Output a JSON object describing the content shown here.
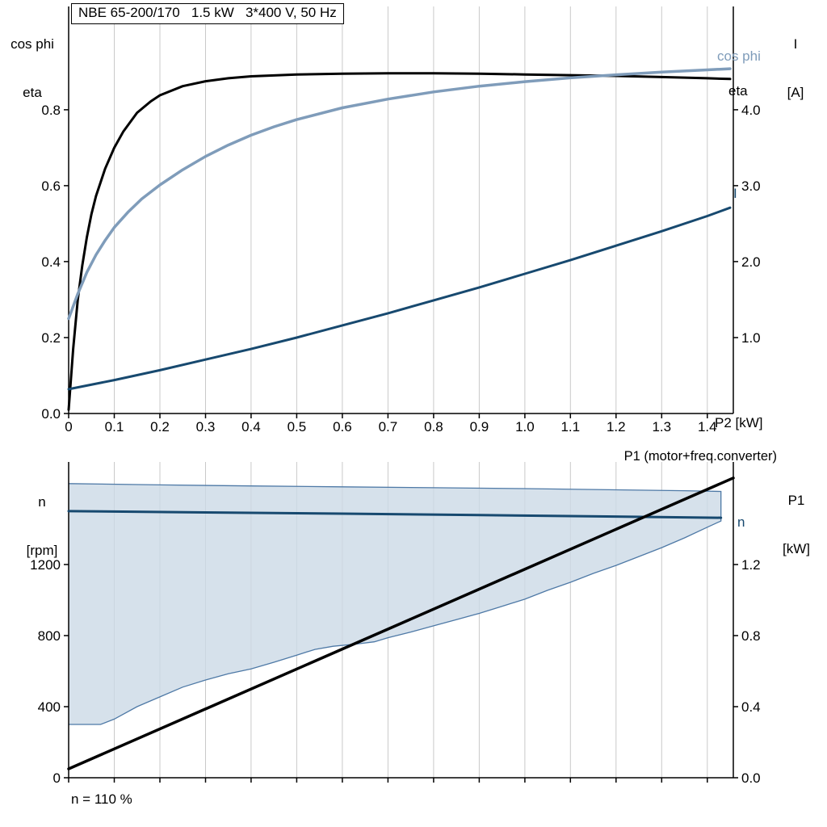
{
  "title_box": {
    "text": "NBE 65-200/170   1.5 kW   3*400 V, 50 Hz"
  },
  "colors": {
    "eta_curve": "#000000",
    "cos_phi_curve": "#7f9cba",
    "current_curve": "#17496f",
    "speed_curve": "#17496f",
    "p1_curve": "#000000",
    "envelope_fill": "#ccd9e6",
    "envelope_edge": "#4e79a6",
    "grid": "#c9c9c9",
    "axis": "#000000",
    "text": "#000000"
  },
  "top_chart": {
    "left_axis_title": [
      "cos phi",
      "eta"
    ],
    "right_axis_title": [
      "I",
      "[A]"
    ],
    "x_axis_label": "P2 [kW]",
    "series_labels": {
      "cos_phi": "cos phi",
      "eta": "eta",
      "current": "I"
    }
  },
  "bottom_chart": {
    "left_axis_title": [
      "n",
      "[rpm]"
    ],
    "right_axis_title": [
      "P1",
      "[kW]"
    ],
    "p1_series_label": "P1 (motor+freq.converter)",
    "n_series_label": "n",
    "annotation": "n = 110 %"
  },
  "chart_data": [
    {
      "id": "top",
      "type": "line",
      "title": "NBE 65-200/170 1.5 kW 3*400 V, 50 Hz",
      "xlabel": "P2 [kW]",
      "xlim": [
        0,
        1.457
      ],
      "x_ticks": [
        {
          "v": 0,
          "label": "0"
        },
        {
          "v": 0.1,
          "label": "0.1"
        },
        {
          "v": 0.2,
          "label": "0.2"
        },
        {
          "v": 0.3,
          "label": "0.3"
        },
        {
          "v": 0.4,
          "label": "0.4"
        },
        {
          "v": 0.5,
          "label": "0.5"
        },
        {
          "v": 0.6,
          "label": "0.6"
        },
        {
          "v": 0.7,
          "label": "0.7"
        },
        {
          "v": 0.8,
          "label": "0.8"
        },
        {
          "v": 0.9,
          "label": "0.9"
        },
        {
          "v": 1.0,
          "label": "1.0"
        },
        {
          "v": 1.1,
          "label": "1.1"
        },
        {
          "v": 1.2,
          "label": "1.2"
        },
        {
          "v": 1.3,
          "label": "1.3"
        },
        {
          "v": 1.4,
          "label": "1.4"
        }
      ],
      "left_axis": {
        "label": "cos phi / eta",
        "lim": [
          0,
          1.072
        ],
        "ticks": [
          {
            "v": 0,
            "label": "0.0"
          },
          {
            "v": 0.2,
            "label": "0.2"
          },
          {
            "v": 0.4,
            "label": "0.4"
          },
          {
            "v": 0.6,
            "label": "0.6"
          },
          {
            "v": 0.8,
            "label": "0.8"
          }
        ]
      },
      "right_axis": {
        "label": "I [A]",
        "lim": [
          0,
          5.36
        ],
        "ticks": [
          {
            "v": 1,
            "label": "1.0"
          },
          {
            "v": 2,
            "label": "2.0"
          },
          {
            "v": 3,
            "label": "3.0"
          },
          {
            "v": 4,
            "label": "4.0"
          }
        ]
      },
      "series": [
        {
          "name": "eta",
          "axis": "left",
          "color_key": "eta_curve",
          "width": 3,
          "points": [
            [
              0,
              0.01
            ],
            [
              0.01,
              0.17
            ],
            [
              0.02,
              0.3
            ],
            [
              0.03,
              0.39
            ],
            [
              0.04,
              0.465
            ],
            [
              0.05,
              0.525
            ],
            [
              0.06,
              0.573
            ],
            [
              0.08,
              0.645
            ],
            [
              0.1,
              0.7
            ],
            [
              0.12,
              0.743
            ],
            [
              0.15,
              0.792
            ],
            [
              0.18,
              0.822
            ],
            [
              0.2,
              0.838
            ],
            [
              0.25,
              0.862
            ],
            [
              0.3,
              0.875
            ],
            [
              0.35,
              0.883
            ],
            [
              0.4,
              0.888
            ],
            [
              0.5,
              0.893
            ],
            [
              0.6,
              0.895
            ],
            [
              0.7,
              0.896
            ],
            [
              0.8,
              0.896
            ],
            [
              0.9,
              0.895
            ],
            [
              1.0,
              0.893
            ],
            [
              1.1,
              0.891
            ],
            [
              1.2,
              0.889
            ],
            [
              1.3,
              0.886
            ],
            [
              1.4,
              0.883
            ],
            [
              1.45,
              0.881
            ]
          ]
        },
        {
          "name": "cos phi",
          "axis": "left",
          "color_key": "cos_phi_curve",
          "width": 3.5,
          "points": [
            [
              0,
              0.25
            ],
            [
              0.02,
              0.315
            ],
            [
              0.04,
              0.372
            ],
            [
              0.06,
              0.418
            ],
            [
              0.08,
              0.456
            ],
            [
              0.1,
              0.49
            ],
            [
              0.13,
              0.53
            ],
            [
              0.16,
              0.565
            ],
            [
              0.2,
              0.602
            ],
            [
              0.25,
              0.642
            ],
            [
              0.3,
              0.677
            ],
            [
              0.35,
              0.707
            ],
            [
              0.4,
              0.733
            ],
            [
              0.45,
              0.755
            ],
            [
              0.5,
              0.774
            ],
            [
              0.6,
              0.805
            ],
            [
              0.7,
              0.828
            ],
            [
              0.8,
              0.847
            ],
            [
              0.9,
              0.862
            ],
            [
              1.0,
              0.874
            ],
            [
              1.1,
              0.884
            ],
            [
              1.2,
              0.892
            ],
            [
              1.3,
              0.899
            ],
            [
              1.4,
              0.905
            ],
            [
              1.45,
              0.908
            ]
          ]
        },
        {
          "name": "I",
          "axis": "right",
          "color_key": "current_curve",
          "width": 3,
          "points": [
            [
              0,
              0.32
            ],
            [
              0.1,
              0.44
            ],
            [
              0.2,
              0.57
            ],
            [
              0.3,
              0.71
            ],
            [
              0.4,
              0.85
            ],
            [
              0.5,
              1.0
            ],
            [
              0.6,
              1.16
            ],
            [
              0.7,
              1.32
            ],
            [
              0.8,
              1.49
            ],
            [
              0.9,
              1.66
            ],
            [
              1.0,
              1.84
            ],
            [
              1.1,
              2.02
            ],
            [
              1.2,
              2.21
            ],
            [
              1.3,
              2.4
            ],
            [
              1.4,
              2.6
            ],
            [
              1.45,
              2.71
            ]
          ]
        }
      ]
    },
    {
      "id": "bottom",
      "type": "line",
      "title": "",
      "xlabel": "",
      "xlim": [
        0,
        1.457
      ],
      "x_ticks": [
        {
          "v": 0
        },
        {
          "v": 0.1
        },
        {
          "v": 0.2
        },
        {
          "v": 0.3
        },
        {
          "v": 0.4
        },
        {
          "v": 0.5
        },
        {
          "v": 0.6
        },
        {
          "v": 0.7
        },
        {
          "v": 0.8
        },
        {
          "v": 0.9
        },
        {
          "v": 1.0
        },
        {
          "v": 1.1
        },
        {
          "v": 1.2
        },
        {
          "v": 1.3
        },
        {
          "v": 1.4
        }
      ],
      "left_axis": {
        "label": "n [rpm]",
        "lim": [
          0,
          1777
        ],
        "ticks": [
          {
            "v": 0,
            "label": "0"
          },
          {
            "v": 400,
            "label": "400"
          },
          {
            "v": 800,
            "label": "800"
          },
          {
            "v": 1200,
            "label": "1200"
          }
        ]
      },
      "right_axis": {
        "label": "P1 [kW]",
        "lim": [
          0,
          1.777
        ],
        "ticks": [
          {
            "v": 0,
            "label": "0.0"
          },
          {
            "v": 0.4,
            "label": "0.4"
          },
          {
            "v": 0.8,
            "label": "0.8"
          },
          {
            "v": 1.2,
            "label": "1.2"
          }
        ]
      },
      "annotation": "n = 110 %",
      "series": [
        {
          "name": "speed range envelope",
          "type": "area",
          "axis": "left",
          "fill_key": "envelope_fill",
          "edge_key": "envelope_edge",
          "edge_width": 1.3,
          "fill_opacity": 0.8,
          "upper": [
            [
              0,
              1655
            ],
            [
              0.2,
              1648
            ],
            [
              0.4,
              1642
            ],
            [
              0.6,
              1637
            ],
            [
              0.8,
              1632
            ],
            [
              1.0,
              1627
            ],
            [
              1.2,
              1620
            ],
            [
              1.35,
              1615
            ],
            [
              1.43,
              1611
            ]
          ],
          "lower": [
            [
              0,
              300
            ],
            [
              0.07,
              300
            ],
            [
              0.1,
              330
            ],
            [
              0.15,
              400
            ],
            [
              0.2,
              455
            ],
            [
              0.25,
              510
            ],
            [
              0.3,
              550
            ],
            [
              0.35,
              585
            ],
            [
              0.4,
              612
            ],
            [
              0.45,
              650
            ],
            [
              0.5,
              690
            ],
            [
              0.54,
              722
            ],
            [
              0.58,
              740
            ],
            [
              0.63,
              752
            ],
            [
              0.67,
              765
            ],
            [
              0.7,
              788
            ],
            [
              0.75,
              820
            ],
            [
              0.8,
              855
            ],
            [
              0.85,
              890
            ],
            [
              0.9,
              925
            ],
            [
              0.95,
              965
            ],
            [
              1.0,
              1005
            ],
            [
              1.05,
              1055
            ],
            [
              1.1,
              1100
            ],
            [
              1.15,
              1150
            ],
            [
              1.2,
              1195
            ],
            [
              1.25,
              1245
            ],
            [
              1.3,
              1295
            ],
            [
              1.35,
              1350
            ],
            [
              1.4,
              1410
            ],
            [
              1.43,
              1445
            ]
          ]
        },
        {
          "name": "n",
          "axis": "left",
          "color_key": "speed_curve",
          "width": 3,
          "points": [
            [
              0,
              1500
            ],
            [
              0.3,
              1493
            ],
            [
              0.6,
              1486
            ],
            [
              0.9,
              1478
            ],
            [
              1.2,
              1470
            ],
            [
              1.43,
              1463
            ]
          ]
        },
        {
          "name": "P1 (motor+freq.converter)",
          "axis": "right",
          "color_key": "p1_curve",
          "width": 3.5,
          "points": [
            [
              0,
              0.05
            ],
            [
              1.457,
              1.687
            ]
          ]
        }
      ]
    }
  ]
}
